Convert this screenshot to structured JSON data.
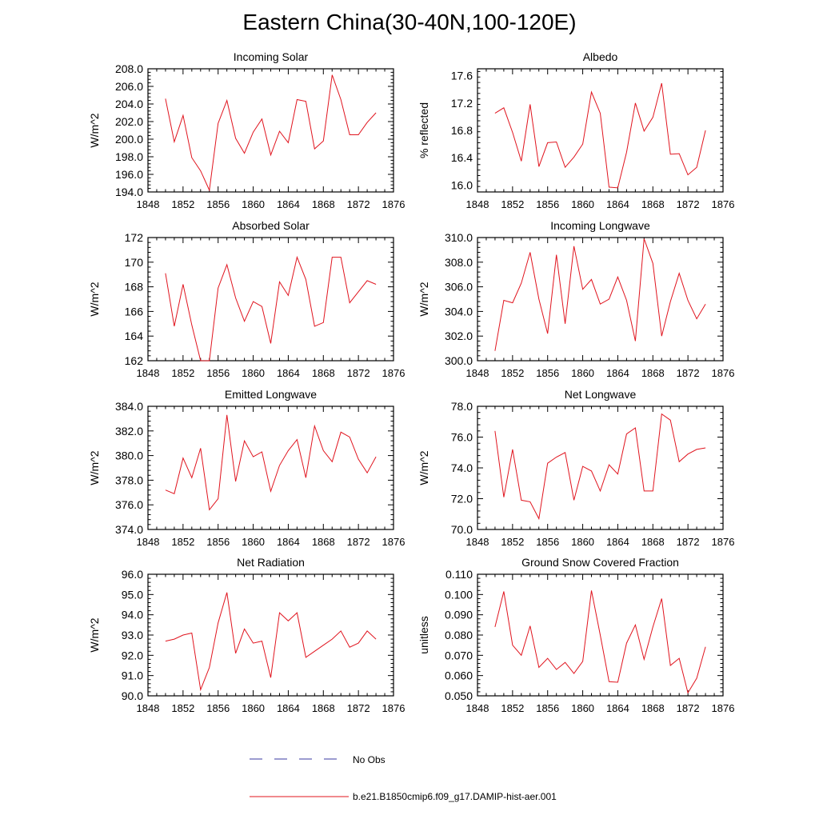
{
  "title": "Eastern China(30-40N,100-120E)",
  "legend": [
    {
      "label": "No Obs",
      "color": "#3a3aa0",
      "dash": true
    },
    {
      "label": "b.e21.B1850cmip6.f09_g17.DAMIP-hist-aer.001",
      "color": "#e0141e",
      "dash": false
    }
  ],
  "chart_data": [
    {
      "type": "line",
      "title": "Incoming Solar",
      "ylabel": "W/m^2",
      "xlim": [
        1848,
        1876
      ],
      "xticks": [
        "1848",
        "1852",
        "1856",
        "1860",
        "1864",
        "1868",
        "1872",
        "1876"
      ],
      "ylim": [
        194,
        208
      ],
      "yticks": [
        "194.0",
        "196.0",
        "198.0",
        "200.0",
        "202.0",
        "204.0",
        "206.0",
        "208.0"
      ],
      "x": [
        1850,
        1851,
        1852,
        1853,
        1854,
        1855,
        1856,
        1857,
        1858,
        1859,
        1860,
        1861,
        1862,
        1863,
        1864,
        1865,
        1866,
        1867,
        1868,
        1869,
        1870,
        1871,
        1872,
        1873,
        1874
      ],
      "series": [
        {
          "values": [
            204.6,
            199.7,
            202.7,
            197.9,
            196.4,
            194.2,
            201.8,
            204.4,
            200.1,
            198.4,
            200.8,
            202.3,
            198.2,
            200.9,
            199.6,
            204.5,
            204.3,
            198.9,
            199.8,
            207.3,
            204.5,
            200.5,
            200.5,
            201.9,
            203.0
          ]
        }
      ]
    },
    {
      "type": "line",
      "title": "Albedo",
      "ylabel": "% reflected",
      "xlim": [
        1848,
        1876
      ],
      "xticks": [
        "1848",
        "1852",
        "1856",
        "1860",
        "1864",
        "1868",
        "1872",
        "1876"
      ],
      "ylim": [
        15.9,
        17.7
      ],
      "yticks": [
        "16.0",
        "16.4",
        "16.8",
        "17.2",
        "17.6"
      ],
      "x": [
        1850,
        1851,
        1852,
        1853,
        1854,
        1855,
        1856,
        1857,
        1858,
        1859,
        1860,
        1861,
        1862,
        1863,
        1864,
        1865,
        1866,
        1867,
        1868,
        1869,
        1870,
        1871,
        1872,
        1873,
        1874
      ],
      "series": [
        {
          "values": [
            17.05,
            17.13,
            16.77,
            16.35,
            17.18,
            16.27,
            16.62,
            16.63,
            16.26,
            16.41,
            16.6,
            17.36,
            17.05,
            15.97,
            15.96,
            16.48,
            17.2,
            16.79,
            16.99,
            17.49,
            16.45,
            16.46,
            16.15,
            16.26,
            16.8
          ]
        }
      ]
    },
    {
      "type": "line",
      "title": "Absorbed Solar",
      "ylabel": "W/m^2",
      "xlim": [
        1848,
        1876
      ],
      "xticks": [
        "1848",
        "1852",
        "1856",
        "1860",
        "1864",
        "1868",
        "1872",
        "1876"
      ],
      "ylim": [
        162,
        172
      ],
      "yticks": [
        "162",
        "164",
        "166",
        "168",
        "170",
        "172"
      ],
      "x": [
        1850,
        1851,
        1852,
        1853,
        1854,
        1855,
        1856,
        1857,
        1858,
        1859,
        1860,
        1861,
        1862,
        1863,
        1864,
        1865,
        1866,
        1867,
        1868,
        1869,
        1870,
        1871,
        1872,
        1873,
        1874
      ],
      "series": [
        {
          "values": [
            169.1,
            164.8,
            168.2,
            164.9,
            162.0,
            162.0,
            167.9,
            169.8,
            167.1,
            165.2,
            166.8,
            166.4,
            163.4,
            168.4,
            167.3,
            170.4,
            168.6,
            164.8,
            165.1,
            170.4,
            170.4,
            166.7,
            167.6,
            168.5,
            168.2
          ]
        }
      ]
    },
    {
      "type": "line",
      "title": "Incoming Longwave",
      "ylabel": "W/m^2",
      "xlim": [
        1848,
        1876
      ],
      "xticks": [
        "1848",
        "1852",
        "1856",
        "1860",
        "1864",
        "1868",
        "1872",
        "1876"
      ],
      "ylim": [
        300,
        310
      ],
      "yticks": [
        "300.0",
        "302.0",
        "304.0",
        "306.0",
        "308.0",
        "310.0"
      ],
      "x": [
        1850,
        1851,
        1852,
        1853,
        1854,
        1855,
        1856,
        1857,
        1858,
        1859,
        1860,
        1861,
        1862,
        1863,
        1864,
        1865,
        1866,
        1867,
        1868,
        1869,
        1870,
        1871,
        1872,
        1873,
        1874
      ],
      "series": [
        {
          "values": [
            300.8,
            304.9,
            304.7,
            306.3,
            308.8,
            305.0,
            302.2,
            308.6,
            303.0,
            309.3,
            305.8,
            306.6,
            304.6,
            305.0,
            306.8,
            304.9,
            301.6,
            309.9,
            307.9,
            302.0,
            304.8,
            307.1,
            304.9,
            303.4,
            304.6
          ]
        }
      ]
    },
    {
      "type": "line",
      "title": "Emitted Longwave",
      "ylabel": "W/m^2",
      "xlim": [
        1848,
        1876
      ],
      "xticks": [
        "1848",
        "1852",
        "1856",
        "1860",
        "1864",
        "1868",
        "1872",
        "1876"
      ],
      "ylim": [
        374,
        384
      ],
      "yticks": [
        "374.0",
        "376.0",
        "378.0",
        "380.0",
        "382.0",
        "384.0"
      ],
      "x": [
        1850,
        1851,
        1852,
        1853,
        1854,
        1855,
        1856,
        1857,
        1858,
        1859,
        1860,
        1861,
        1862,
        1863,
        1864,
        1865,
        1866,
        1867,
        1868,
        1869,
        1870,
        1871,
        1872,
        1873,
        1874
      ],
      "series": [
        {
          "values": [
            377.2,
            376.9,
            379.8,
            378.2,
            380.6,
            375.6,
            376.5,
            383.3,
            377.9,
            381.2,
            379.9,
            380.3,
            377.1,
            379.2,
            380.4,
            381.3,
            378.2,
            382.4,
            380.4,
            379.5,
            381.9,
            381.5,
            379.7,
            378.6,
            379.9
          ]
        }
      ]
    },
    {
      "type": "line",
      "title": "Net Longwave",
      "ylabel": "W/m^2",
      "xlim": [
        1848,
        1876
      ],
      "xticks": [
        "1848",
        "1852",
        "1856",
        "1860",
        "1864",
        "1868",
        "1872",
        "1876"
      ],
      "ylim": [
        70,
        78
      ],
      "yticks": [
        "70.0",
        "72.0",
        "74.0",
        "76.0",
        "78.0"
      ],
      "x": [
        1850,
        1851,
        1852,
        1853,
        1854,
        1855,
        1856,
        1857,
        1858,
        1859,
        1860,
        1861,
        1862,
        1863,
        1864,
        1865,
        1866,
        1867,
        1868,
        1869,
        1870,
        1871,
        1872,
        1873,
        1874
      ],
      "series": [
        {
          "values": [
            76.4,
            72.1,
            75.2,
            71.9,
            71.8,
            70.7,
            74.3,
            74.7,
            75.0,
            71.9,
            74.1,
            73.8,
            72.5,
            74.2,
            73.6,
            76.2,
            76.6,
            72.5,
            72.5,
            77.5,
            77.1,
            74.4,
            74.9,
            75.2,
            75.3
          ]
        }
      ]
    },
    {
      "type": "line",
      "title": "Net Radiation",
      "ylabel": "W/m^2",
      "xlim": [
        1848,
        1876
      ],
      "xticks": [
        "1848",
        "1852",
        "1856",
        "1860",
        "1864",
        "1868",
        "1872",
        "1876"
      ],
      "ylim": [
        90,
        96
      ],
      "yticks": [
        "90.0",
        "91.0",
        "92.0",
        "93.0",
        "94.0",
        "95.0",
        "96.0"
      ],
      "x": [
        1850,
        1851,
        1852,
        1853,
        1854,
        1855,
        1856,
        1857,
        1858,
        1859,
        1860,
        1861,
        1862,
        1863,
        1864,
        1865,
        1866,
        1867,
        1868,
        1869,
        1870,
        1871,
        1872,
        1873,
        1874
      ],
      "series": [
        {
          "values": [
            92.7,
            92.8,
            93.0,
            93.1,
            90.3,
            91.4,
            93.6,
            95.1,
            92.1,
            93.3,
            92.6,
            92.7,
            90.9,
            94.1,
            93.7,
            94.1,
            91.9,
            92.2,
            92.5,
            92.8,
            93.2,
            92.4,
            92.6,
            93.2,
            92.8
          ]
        }
      ]
    },
    {
      "type": "line",
      "title": "Ground Snow Covered Fraction",
      "ylabel": "unitless",
      "xlim": [
        1848,
        1876
      ],
      "xticks": [
        "1848",
        "1852",
        "1856",
        "1860",
        "1864",
        "1868",
        "1872",
        "1876"
      ],
      "ylim": [
        0.05,
        0.11
      ],
      "yticks": [
        "0.050",
        "0.060",
        "0.070",
        "0.080",
        "0.090",
        "0.100",
        "0.110"
      ],
      "x": [
        1850,
        1851,
        1852,
        1853,
        1854,
        1855,
        1856,
        1857,
        1858,
        1859,
        1860,
        1861,
        1862,
        1863,
        1864,
        1865,
        1866,
        1867,
        1868,
        1869,
        1870,
        1871,
        1872,
        1873,
        1874
      ],
      "series": [
        {
          "values": [
            0.084,
            0.1015,
            0.075,
            0.07,
            0.0845,
            0.064,
            0.0685,
            0.063,
            0.0665,
            0.061,
            0.067,
            0.102,
            0.08,
            0.057,
            0.0567,
            0.076,
            0.085,
            0.068,
            0.084,
            0.098,
            0.065,
            0.0685,
            0.0515,
            0.0587,
            0.0742
          ]
        }
      ]
    }
  ]
}
